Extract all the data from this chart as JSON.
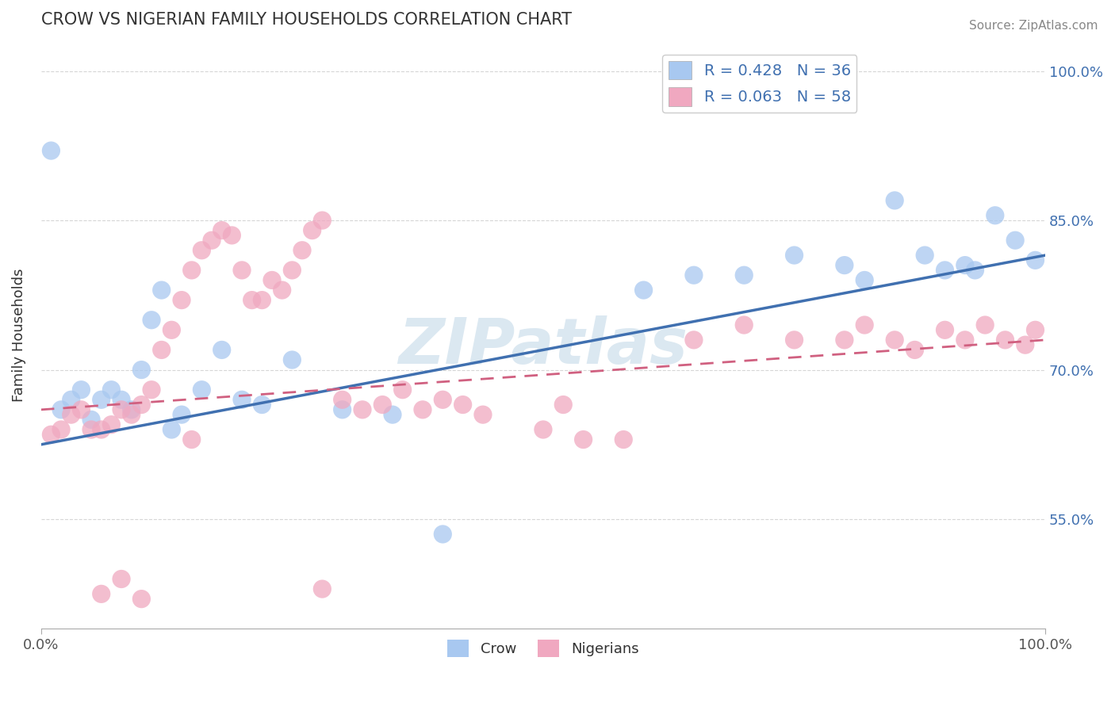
{
  "title": "CROW VS NIGERIAN FAMILY HOUSEHOLDS CORRELATION CHART",
  "source": "Source: ZipAtlas.com",
  "ylabel": "Family Households",
  "xlim": [
    0,
    1
  ],
  "ylim": [
    0.44,
    1.03
  ],
  "y_tick_labels": [
    "55.0%",
    "70.0%",
    "85.0%",
    "100.0%"
  ],
  "y_tick_values": [
    0.55,
    0.7,
    0.85,
    1.0
  ],
  "crow_color": "#a8c8f0",
  "nigerian_color": "#f0a8c0",
  "crow_line_color": "#4070b0",
  "nigerian_line_color": "#d06080",
  "crow_R": 0.428,
  "crow_N": 36,
  "nigerian_R": 0.063,
  "nigerian_N": 58,
  "watermark": "ZIPatlas",
  "title_color": "#333333",
  "source_color": "#888888",
  "crow_points_x": [
    0.01,
    0.02,
    0.03,
    0.04,
    0.05,
    0.06,
    0.07,
    0.08,
    0.09,
    0.1,
    0.11,
    0.12,
    0.13,
    0.14,
    0.16,
    0.18,
    0.2,
    0.22,
    0.25,
    0.3,
    0.35,
    0.4,
    0.6,
    0.65,
    0.7,
    0.75,
    0.8,
    0.82,
    0.85,
    0.88,
    0.9,
    0.92,
    0.93,
    0.95,
    0.97,
    0.99
  ],
  "crow_points_y": [
    0.92,
    0.66,
    0.67,
    0.68,
    0.65,
    0.67,
    0.68,
    0.67,
    0.66,
    0.7,
    0.75,
    0.78,
    0.64,
    0.655,
    0.68,
    0.72,
    0.67,
    0.665,
    0.71,
    0.66,
    0.655,
    0.535,
    0.78,
    0.795,
    0.795,
    0.815,
    0.805,
    0.79,
    0.87,
    0.815,
    0.8,
    0.805,
    0.8,
    0.855,
    0.83,
    0.81
  ],
  "nigerian_points_x": [
    0.01,
    0.02,
    0.03,
    0.04,
    0.05,
    0.06,
    0.07,
    0.08,
    0.09,
    0.1,
    0.11,
    0.12,
    0.13,
    0.14,
    0.15,
    0.16,
    0.17,
    0.18,
    0.19,
    0.2,
    0.21,
    0.22,
    0.23,
    0.24,
    0.25,
    0.26,
    0.27,
    0.28,
    0.3,
    0.32,
    0.34,
    0.36,
    0.38,
    0.4,
    0.42,
    0.44,
    0.5,
    0.52,
    0.54,
    0.58,
    0.65,
    0.7,
    0.75,
    0.8,
    0.82,
    0.85,
    0.87,
    0.9,
    0.92,
    0.94,
    0.96,
    0.98,
    0.99,
    0.15,
    0.08,
    0.1,
    0.06,
    0.28
  ],
  "nigerian_points_y": [
    0.635,
    0.64,
    0.655,
    0.66,
    0.64,
    0.64,
    0.645,
    0.66,
    0.655,
    0.665,
    0.68,
    0.72,
    0.74,
    0.77,
    0.8,
    0.82,
    0.83,
    0.84,
    0.835,
    0.8,
    0.77,
    0.77,
    0.79,
    0.78,
    0.8,
    0.82,
    0.84,
    0.85,
    0.67,
    0.66,
    0.665,
    0.68,
    0.66,
    0.67,
    0.665,
    0.655,
    0.64,
    0.665,
    0.63,
    0.63,
    0.73,
    0.745,
    0.73,
    0.73,
    0.745,
    0.73,
    0.72,
    0.74,
    0.73,
    0.745,
    0.73,
    0.725,
    0.74,
    0.63,
    0.49,
    0.47,
    0.475,
    0.48
  ]
}
